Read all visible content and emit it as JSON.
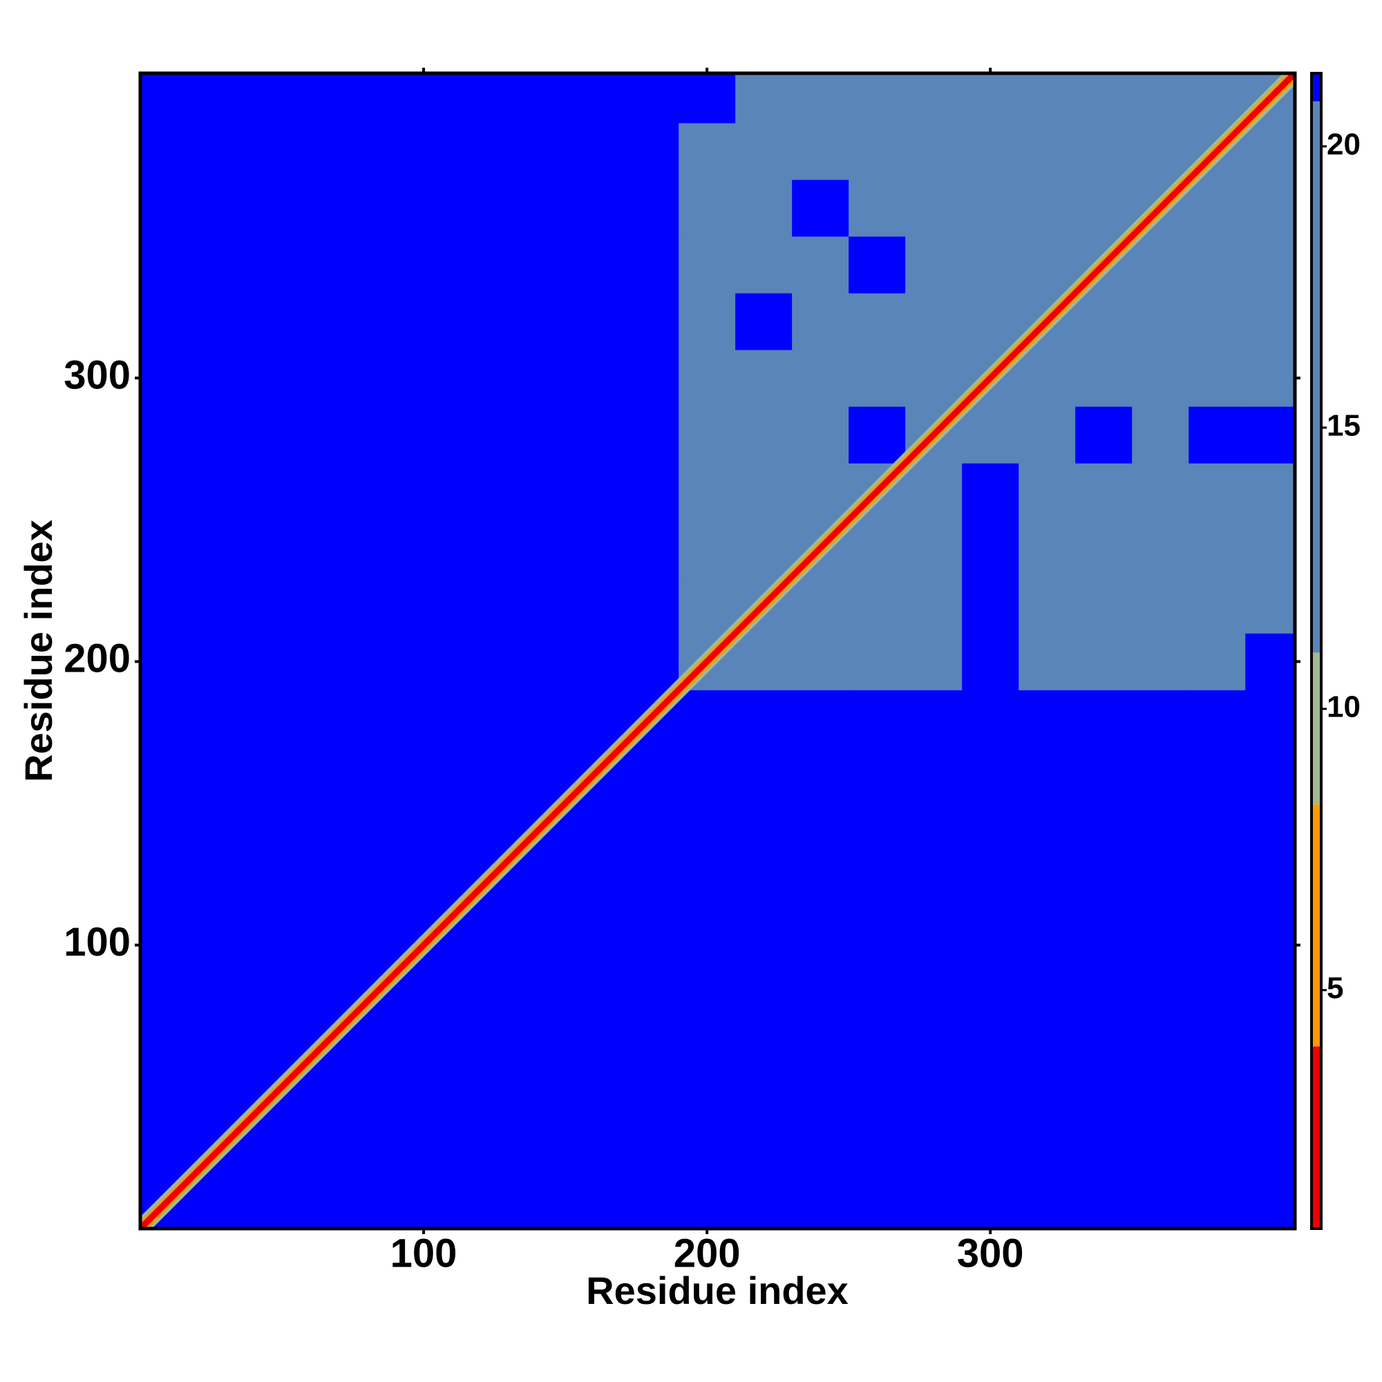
{
  "chart_data": {
    "type": "heatmap",
    "x_label": "Residue index",
    "y_label": "Residue index",
    "xlim": [
      0,
      407.5
    ],
    "ylim": [
      0,
      407.5
    ],
    "xticks": [
      100,
      200,
      300
    ],
    "yticks": [
      100,
      200,
      300
    ],
    "fill_value": 21.3,
    "x_edges": [
      190,
      210,
      230,
      250,
      270,
      290,
      310,
      330,
      350,
      370,
      390,
      407.5
    ],
    "y_edges": [
      190,
      210,
      230,
      250,
      270,
      290,
      310,
      330,
      350,
      370,
      390,
      407.5
    ],
    "z": [
      [
        12,
        13,
        13,
        14,
        16,
        21.3,
        17,
        18,
        17,
        18,
        21.3
      ],
      [
        13,
        12,
        13,
        14,
        13,
        21.3,
        17,
        18,
        17,
        17,
        18
      ],
      [
        13,
        13,
        12,
        12,
        14,
        21.3,
        17,
        17,
        16,
        13,
        17
      ],
      [
        13,
        13,
        12,
        12,
        12,
        21.3,
        17,
        18,
        17,
        17,
        17
      ],
      [
        17,
        18,
        16,
        21.3,
        12,
        13,
        18,
        21.3,
        18,
        21.3,
        21.3
      ],
      [
        16,
        16,
        15,
        16,
        13,
        12,
        12,
        14,
        15,
        14,
        15
      ],
      [
        16,
        21.3,
        15,
        16,
        15,
        12,
        12,
        12,
        16,
        15,
        16
      ],
      [
        16,
        16,
        15,
        21.3,
        15,
        14,
        12,
        12,
        12,
        16,
        17
      ],
      [
        16,
        16,
        21.3,
        16,
        16,
        13,
        15,
        12,
        12,
        12,
        17
      ],
      [
        17,
        16,
        13,
        16,
        14,
        15,
        16,
        15,
        12,
        12,
        12
      ],
      [
        21.3,
        18,
        17,
        17,
        14,
        17,
        17,
        17,
        17,
        12,
        12
      ]
    ],
    "diagonal": {
      "from": 0,
      "to": 407.5,
      "value": 3.8
    },
    "colorbar": {
      "lim": [
        0.76,
        21.3
      ],
      "ticks": [
        5,
        10,
        15,
        20
      ],
      "bands": [
        {
          "from": 0.76,
          "to": 4,
          "color": "#ee0000"
        },
        {
          "from": 4,
          "to": 8.3,
          "color": "#ff9a00"
        },
        {
          "from": 8.3,
          "to": 11,
          "color": "#a3b98e"
        },
        {
          "from": 11,
          "to": 20.8,
          "color": "#5a85b8"
        },
        {
          "from": 20.8,
          "to": 21.3,
          "color": "#0000ff"
        }
      ]
    }
  }
}
